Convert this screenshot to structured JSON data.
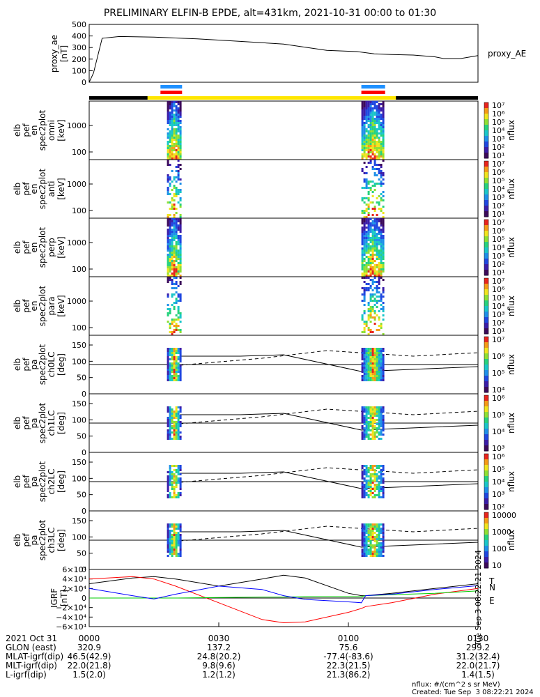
{
  "title": "PRELIMINARY ELFIN-B EPDE, alt=431km, 2021-10-31 00:00 to 01:30",
  "colors": {
    "bar_yellow": "#ffe600",
    "bar_black": "#000000",
    "marker_blue": "#1e90ff",
    "marker_red": "#ff0000"
  },
  "chart_data": [
    {
      "type": "line",
      "panel": "proxy_ae",
      "ylabel": [
        "proxy_ae",
        "[nT]"
      ],
      "side_label": "proxy_AE",
      "ylim": [
        0,
        500
      ],
      "yticks": [
        "500",
        "400",
        "300",
        "200",
        "100",
        "0"
      ],
      "x_minutes": [
        0,
        1,
        3,
        7,
        15,
        25,
        32,
        45,
        55,
        62,
        66,
        70,
        75,
        80,
        82,
        86,
        90
      ],
      "y": [
        0,
        80,
        380,
        395,
        390,
        375,
        360,
        330,
        275,
        265,
        245,
        240,
        235,
        220,
        205,
        205,
        230
      ]
    },
    {
      "type": "heatmap",
      "panel": "omni",
      "ylabel": [
        "elb",
        "pef",
        "en",
        "spec2plot",
        "omni",
        "[keV]"
      ],
      "yticks": [
        "1000",
        "100"
      ],
      "colorbar_label": "nflux",
      "colorbar_ticks": [
        "10⁷",
        "10⁶",
        "10⁵",
        "10⁴",
        "10³",
        "10²",
        "10¹"
      ],
      "bursts_minutes": [
        [
          18,
          21
        ],
        [
          63,
          68
        ]
      ]
    },
    {
      "type": "heatmap",
      "panel": "anti",
      "ylabel": [
        "elb",
        "pef",
        "en",
        "spec2plot",
        "anti",
        "[keV]"
      ],
      "yticks": [
        "1000",
        "100"
      ],
      "colorbar_label": "nflux",
      "colorbar_ticks": [
        "10⁷",
        "10⁶",
        "10⁵",
        "10⁴",
        "10³",
        "10²",
        "10¹"
      ],
      "bursts_minutes": [
        [
          18,
          21
        ],
        [
          63,
          68
        ]
      ]
    },
    {
      "type": "heatmap",
      "panel": "perp",
      "ylabel": [
        "elb",
        "pef",
        "en",
        "spec2plot",
        "perp",
        "[keV]"
      ],
      "yticks": [
        "1000",
        "100"
      ],
      "colorbar_label": "nflux",
      "colorbar_ticks": [
        "10⁷",
        "10⁶",
        "10⁵",
        "10⁴",
        "10³",
        "10²",
        "10¹"
      ],
      "bursts_minutes": [
        [
          18,
          21
        ],
        [
          63,
          68
        ]
      ]
    },
    {
      "type": "heatmap",
      "panel": "para",
      "ylabel": [
        "elb",
        "pef",
        "en",
        "spec2plot",
        "para",
        "[keV]"
      ],
      "yticks": [
        "1000",
        "100"
      ],
      "colorbar_label": "nflux",
      "colorbar_ticks": [
        "10⁷",
        "10⁶",
        "10⁵",
        "10⁴",
        "10³",
        "10²",
        "10¹"
      ],
      "bursts_minutes": [
        [
          18,
          21
        ],
        [
          63,
          68
        ]
      ]
    },
    {
      "type": "heatmap",
      "panel": "ch0LC",
      "ylabel": [
        "elb",
        "pef",
        "pa",
        "spec2plot",
        "ch0LC",
        "[deg]"
      ],
      "yticks": [
        "150",
        "100",
        "50",
        "0"
      ],
      "ylim": [
        0,
        180
      ],
      "colorbar_label": "nflux",
      "colorbar_ticks": [
        "10⁷",
        "10⁶",
        "10⁵",
        "10⁴"
      ],
      "bursts_minutes": [
        [
          18,
          21
        ],
        [
          63,
          68
        ]
      ],
      "reference_deg": 90
    },
    {
      "type": "heatmap",
      "panel": "ch1LC",
      "ylabel": [
        "elb",
        "pef",
        "pa",
        "spec2plot",
        "ch1LC",
        "[deg]"
      ],
      "yticks": [
        "150",
        "100",
        "50",
        "0"
      ],
      "ylim": [
        0,
        180
      ],
      "colorbar_label": "nflux",
      "colorbar_ticks": [
        "10⁶",
        "10⁵",
        "10⁴",
        "10³"
      ],
      "bursts_minutes": [
        [
          18,
          21
        ],
        [
          63,
          68
        ]
      ],
      "reference_deg": 90
    },
    {
      "type": "heatmap",
      "panel": "ch2LC",
      "ylabel": [
        "elb",
        "pef",
        "pa",
        "spec2plot",
        "ch2LC",
        "[deg]"
      ],
      "yticks": [
        "150",
        "100",
        "50",
        "0"
      ],
      "ylim": [
        0,
        180
      ],
      "colorbar_label": "nflux",
      "colorbar_ticks": [
        "10⁶",
        "10⁵",
        "10⁴",
        "10³",
        "10²"
      ],
      "bursts_minutes": [
        [
          18,
          21
        ],
        [
          63,
          68
        ]
      ],
      "reference_deg": 90
    },
    {
      "type": "heatmap",
      "panel": "ch3LC",
      "ylabel": [
        "elb",
        "pef",
        "pa",
        "spec2plot",
        "ch3LC",
        "[deg]"
      ],
      "yticks": [
        "150",
        "100",
        "50",
        "0"
      ],
      "ylim": [
        0,
        180
      ],
      "colorbar_label": "nflux",
      "colorbar_ticks": [
        "10000",
        "1000",
        "100",
        "10"
      ],
      "bursts_minutes": [
        [
          18,
          21
        ],
        [
          63,
          68
        ]
      ],
      "reference_deg": 90
    },
    {
      "type": "line",
      "panel": "geo_b",
      "ylabel": [
        "IGRF",
        "[nT]"
      ],
      "yticks": [
        "6×10⁴",
        "4×10⁴",
        "2×10⁴",
        "0",
        "−2×10⁴",
        "−4×10⁴",
        "−6×10⁴"
      ],
      "ylim": [
        -60000,
        60000
      ],
      "x_minutes": [
        0,
        10,
        15,
        20,
        30,
        40,
        45,
        50,
        60,
        63,
        64,
        70,
        80,
        90
      ],
      "series": [
        {
          "name": "T",
          "color": "#000000",
          "values": [
            30000,
            42000,
            45000,
            40000,
            25000,
            40000,
            48000,
            42000,
            10000,
            5000,
            5000,
            10000,
            20000,
            30000
          ]
        },
        {
          "name": "N",
          "color": "#ff0000",
          "values": [
            40000,
            45000,
            40000,
            25000,
            -10000,
            -45000,
            -52000,
            -50000,
            -30000,
            -22000,
            -18000,
            -10000,
            8000,
            20000
          ]
        },
        {
          "name": "E",
          "color": "#00cc00",
          "values": [
            0,
            0,
            0,
            0,
            1000,
            2000,
            2000,
            3000,
            3000,
            3000,
            5000,
            7000,
            10000,
            15000
          ]
        },
        {
          "name": "",
          "color": "#0000ff",
          "values": [
            20000,
            5000,
            -2000,
            8000,
            25000,
            18000,
            5000,
            -3000,
            -8000,
            -10000,
            5000,
            8000,
            18000,
            26000
          ]
        }
      ]
    }
  ],
  "footer": {
    "rows": [
      {
        "label": "2021 Oct 31",
        "values": [
          "0000",
          "0030",
          "0100",
          "0130"
        ]
      },
      {
        "label": "GLON (east)",
        "values": [
          "320.9",
          "137.2",
          "75.6",
          "299.2"
        ]
      },
      {
        "label": "MLAT-igrf(dip)",
        "values": [
          "46.5(42.9)",
          "24.8(20.2)",
          "-77.4(-83.6)",
          "31.2(32.4)"
        ]
      },
      {
        "label": "MLT-igrf(dip)",
        "values": [
          "22.0(21.8)",
          "9.8(9.6)",
          "22.3(21.5)",
          "22.0(21.7)"
        ]
      },
      {
        "label": "L-igrf(dip)",
        "values": [
          "1.5(2.0)",
          "1.2(1.2)",
          "21.3(86.2)",
          "1.4(1.5)"
        ]
      }
    ],
    "nflux_units": "nflux: #/(cm^2 s sr MeV)",
    "created": "Created: Tue Sep  3 08:22:21 2024",
    "side_stamp": "Tue Sep  3 08:22:21 2024"
  }
}
